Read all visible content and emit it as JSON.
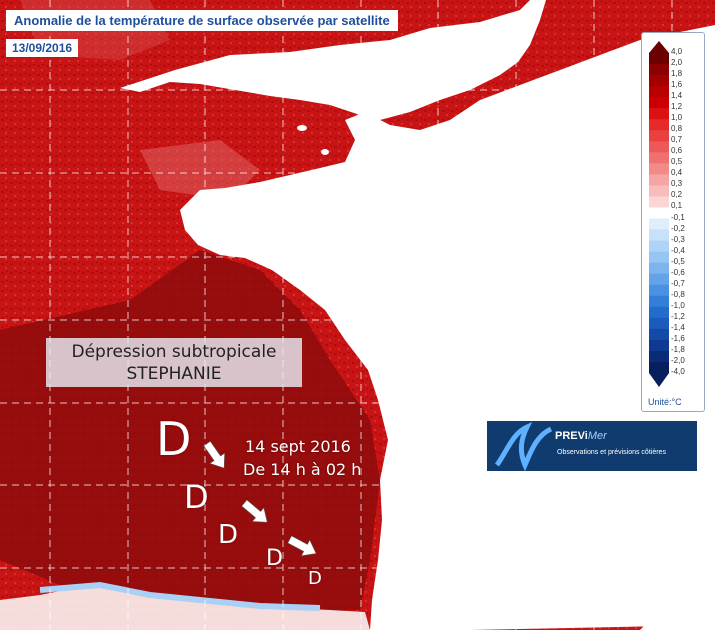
{
  "header": {
    "title": "Anomalie de la température de surface observée par satellite",
    "date": "13/09/2016"
  },
  "storm": {
    "label_line1": "Dépression subtropicale",
    "label_line2": "STEPHANIE",
    "track_line1": "14 sept 2016",
    "track_line2": "De 14 h à 02 h",
    "marker": "D"
  },
  "legend": {
    "labels": [
      "4,0",
      "2,0",
      "1,8",
      "1,6",
      "1,4",
      "1,2",
      "1,0",
      "0,8",
      "0,7",
      "0,6",
      "0,5",
      "0,4",
      "0,3",
      "0,2",
      "0,1",
      "-0,1",
      "-0,2",
      "-0,3",
      "-0,4",
      "-0,5",
      "-0,6",
      "-0,7",
      "-0,8",
      "-1,0",
      "-1,2",
      "-1,4",
      "-1,6",
      "-1,8",
      "-2,0",
      "-4,0"
    ],
    "unit": "Unité:°C",
    "colors": [
      "#6b0000",
      "#8b0000",
      "#a30000",
      "#b80000",
      "#cc0000",
      "#dd1111",
      "#e62a2a",
      "#ea4040",
      "#ee5858",
      "#f07070",
      "#f38a8a",
      "#f6a4a4",
      "#f9bcbc",
      "#fcd6d6",
      "#ffffff",
      "#dfeefc",
      "#c8e1fa",
      "#afd3f7",
      "#96c4f3",
      "#7db4ee",
      "#64a3e8",
      "#4a91e1",
      "#337fd8",
      "#226ccd",
      "#1a5bbd",
      "#134aa8",
      "#0e3a91",
      "#0a2c78",
      "#071f5e"
    ]
  },
  "logo": {
    "brand": "PREVi",
    "brand_suffix": "Mer",
    "tagline": "Observations et prévisions côtières"
  },
  "colors": {
    "sea_anomaly": "#c81414",
    "sea_dark": "#8e0a0a",
    "land": "#ffffff",
    "title_text": "#1f4e9c"
  }
}
